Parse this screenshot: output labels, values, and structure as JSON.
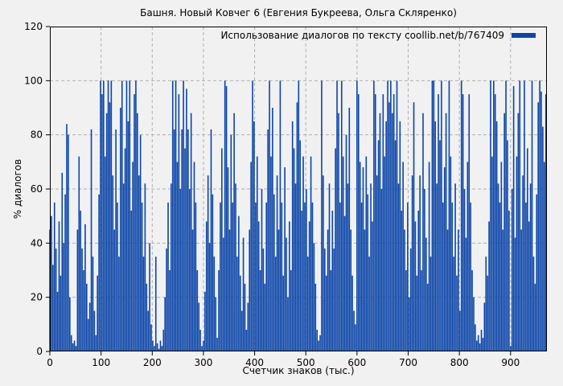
{
  "title": "Башня. Новый Ковчег 6 (Евгения Букреева, Ольга Скляренко)",
  "legend": {
    "label": "Использование диалогов по тексту coollib.net/b/767409",
    "position": "top-right"
  },
  "colors": {
    "background": "#f1f1f1",
    "bar": "#0b45a8",
    "grid": "#b0b0b0",
    "text": "#000000",
    "border": "#000000"
  },
  "chart_data": {
    "type": "bar",
    "style": "impulses",
    "title": "Башня. Новый Ковчег 6 (Евгения Букреева, Ольга Скляренко)",
    "xlabel": "Счетчик знаков (тыс.)",
    "ylabel": "% диалогов",
    "xlim": [
      0,
      971
    ],
    "ylim": [
      0,
      120
    ],
    "xticks": [
      0,
      100,
      200,
      300,
      400,
      500,
      600,
      700,
      800,
      900
    ],
    "yticks": [
      0,
      20,
      40,
      60,
      80,
      100,
      120
    ],
    "grid": true,
    "legend_position": "top-right",
    "series": [
      {
        "name": "Использование диалогов по тексту coollib.net/b/767409",
        "color": "#0b45a8",
        "x_start": 0,
        "x_step": 3,
        "values": [
          45,
          50,
          32,
          55,
          38,
          22,
          48,
          28,
          66,
          40,
          58,
          84,
          80,
          20,
          6,
          3,
          4,
          2,
          45,
          72,
          52,
          38,
          30,
          47,
          25,
          12,
          18,
          82,
          35,
          15,
          6,
          28,
          58,
          100,
          95,
          100,
          72,
          88,
          100,
          92,
          100,
          65,
          45,
          82,
          55,
          35,
          90,
          100,
          62,
          75,
          100,
          85,
          100,
          52,
          70,
          95,
          100,
          88,
          65,
          80,
          55,
          35,
          62,
          25,
          15,
          40,
          10,
          4,
          2,
          35,
          3,
          1,
          4,
          2,
          8,
          20,
          38,
          55,
          30,
          62,
          100,
          82,
          100,
          70,
          95,
          60,
          82,
          100,
          75,
          97,
          82,
          60,
          88,
          45,
          70,
          55,
          30,
          18,
          8,
          2,
          4,
          22,
          48,
          65,
          40,
          82,
          58,
          35,
          20,
          5,
          30,
          55,
          75,
          42,
          100,
          98,
          68,
          45,
          80,
          55,
          88,
          62,
          35,
          50,
          28,
          15,
          42,
          25,
          8,
          18,
          45,
          70,
          100,
          85,
          55,
          72,
          48,
          30,
          60,
          38,
          25,
          55,
          82,
          100,
          72,
          90,
          58,
          35,
          65,
          45,
          100,
          55,
          28,
          68,
          42,
          20,
          48,
          30,
          85,
          75,
          62,
          92,
          100,
          78,
          52,
          72,
          55,
          60,
          35,
          48,
          72,
          55,
          40,
          25,
          8,
          4,
          6,
          100,
          65,
          38,
          28,
          45,
          62,
          30,
          52,
          38,
          75,
          100,
          88,
          55,
          100,
          72,
          50,
          80,
          62,
          90,
          45,
          28,
          15,
          10,
          100,
          95,
          70,
          55,
          68,
          45,
          72,
          58,
          35,
          62,
          48,
          100,
          95,
          65,
          78,
          88,
          60,
          95,
          72,
          85,
          100,
          92,
          100,
          88,
          95,
          78,
          100,
          62,
          85,
          52,
          70,
          45,
          30,
          55,
          20,
          38,
          65,
          92,
          48,
          28,
          52,
          65,
          30,
          88,
          60,
          42,
          25,
          70,
          35,
          100,
          100,
          85,
          62,
          95,
          78,
          100,
          55,
          68,
          88,
          45,
          100,
          72,
          55,
          35,
          62,
          28,
          45,
          15,
          100,
          95,
          60,
          42,
          70,
          95,
          55,
          30,
          20,
          10,
          4,
          6,
          3,
          8,
          5,
          18,
          35,
          28,
          48,
          100,
          72,
          100,
          95,
          85,
          62,
          55,
          70,
          45,
          88,
          100,
          78,
          52,
          2,
          60,
          98,
          42,
          72,
          88,
          100,
          45,
          65,
          100,
          55,
          75,
          48,
          62,
          100,
          35,
          25,
          58,
          92,
          100,
          96,
          83,
          70,
          95
        ]
      }
    ]
  }
}
